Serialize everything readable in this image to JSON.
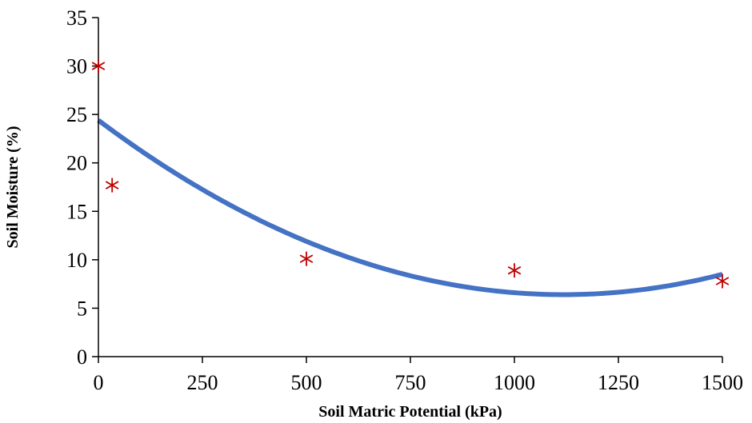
{
  "chart_data": {
    "type": "scatter",
    "title": "",
    "xlabel": "Soil Matric Potential (kPa)",
    "ylabel": "Soil Moisture (%)",
    "xlim": [
      0,
      1500
    ],
    "ylim": [
      0,
      35
    ],
    "xticks": [
      0,
      250,
      500,
      750,
      1000,
      1250,
      1500
    ],
    "yticks": [
      0,
      5,
      10,
      15,
      20,
      25,
      30,
      35
    ],
    "grid": false,
    "legend": "none",
    "series": [
      {
        "kind": "scatter",
        "marker": "asterisk",
        "color": "#c00000",
        "points": [
          {
            "x": 0,
            "y": 30.0
          },
          {
            "x": 33,
            "y": 17.7
          },
          {
            "x": 500,
            "y": 10.1
          },
          {
            "x": 1000,
            "y": 8.9
          },
          {
            "x": 1500,
            "y": 7.8
          }
        ]
      },
      {
        "kind": "trendline",
        "fit": "polynomial-2",
        "color": "#4472c4",
        "coefficients": {
          "a": 1.44e-05,
          "b": -0.0322,
          "c": 24.4
        }
      }
    ]
  }
}
